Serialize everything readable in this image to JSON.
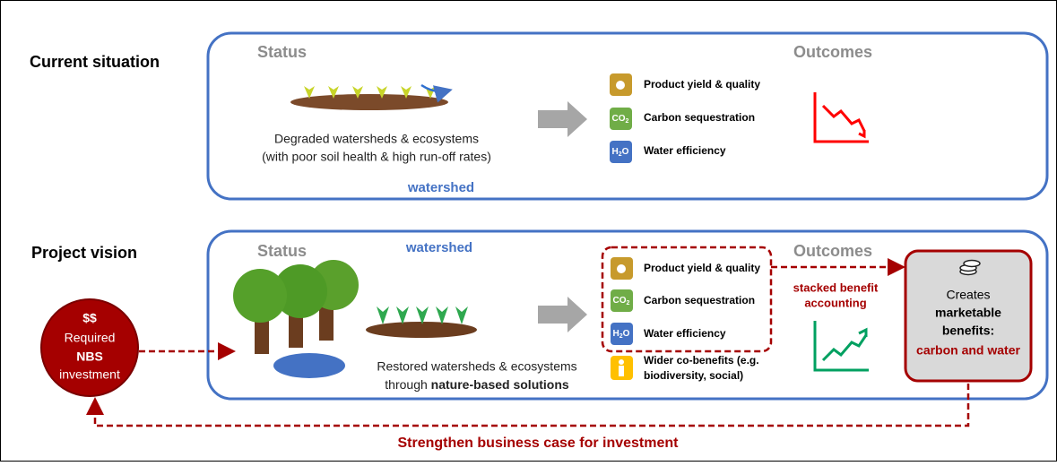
{
  "current": {
    "label": "Current situation",
    "status": "Status",
    "outcomes": "Outcomes",
    "description": [
      "Degraded watersheds & ecosystems",
      "(with poor soil health & high run-off rates)"
    ],
    "watershed": "watershed",
    "indicators": [
      "Product yield & quality",
      "Carbon sequestration",
      "Water efficiency"
    ]
  },
  "icons": {
    "co2": {
      "main": "CO",
      "sub": "2"
    },
    "h2o": {
      "main": "H",
      "sub": "2",
      "end": "O"
    }
  },
  "vision": {
    "label": "Project vision",
    "status": "Status",
    "watershed": "watershed",
    "outcomes": "Outcomes",
    "description": {
      "line1": "Restored watersheds & ecosystems",
      "line2_prefix": "through ",
      "line2_bold": "nature-based solutions"
    },
    "indicators": [
      "Product yield & quality",
      "Carbon sequestration",
      "Water efficiency"
    ],
    "co_benefits": [
      "Wider co-benefits (e.g.",
      "biodiversity, social)"
    ],
    "stacked": [
      "stacked benefit",
      "accounting"
    ],
    "benefits": {
      "line1": "Creates",
      "line2": "marketable",
      "line3": "benefits:",
      "line4": "carbon and water"
    },
    "investment": {
      "line1": "$$",
      "line2": "Required",
      "line3": "NBS",
      "line4": "investment"
    }
  },
  "footer": "Strengthen business case for investment"
}
